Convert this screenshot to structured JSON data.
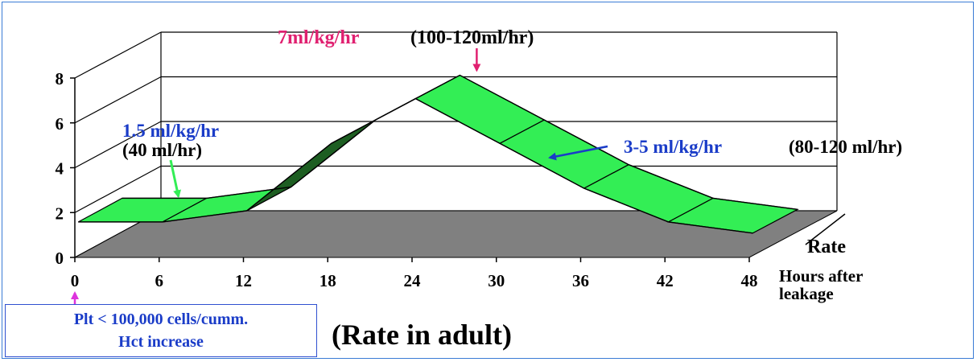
{
  "chart_data": {
    "type": "area",
    "view": "3d",
    "x": [
      0,
      6,
      12,
      18,
      24,
      30,
      36,
      42,
      48
    ],
    "y_ticks": [
      0,
      2,
      4,
      6,
      8
    ],
    "ylim": [
      0,
      8
    ],
    "xlim": [
      0,
      48
    ],
    "series": [
      {
        "name": "Rate",
        "points": [
          {
            "x": 0,
            "y": 1.5
          },
          {
            "x": 6,
            "y": 1.5
          },
          {
            "x": 12,
            "y": 2
          },
          {
            "x": 18,
            "y": 5
          },
          {
            "x": 24,
            "y": 7
          },
          {
            "x": 30,
            "y": 5
          },
          {
            "x": 36,
            "y": 3
          },
          {
            "x": 42,
            "y": 1.5
          },
          {
            "x": 48,
            "y": 1
          }
        ]
      }
    ],
    "x_axis_label": "Hours after leakage",
    "depth_axis_label": "Rate",
    "caption": "(Rate in adult)",
    "colors": {
      "ribbon": "#33ee55",
      "ribbon_dark": "#1d5e22",
      "floor": "#808080",
      "pink": "#e02070",
      "blue": "#1a3cc8"
    },
    "annotations": {
      "peak": {
        "rate": "7ml/kg/hr",
        "volume": "(100-120ml/hr)"
      },
      "initial": {
        "rate": "1.5 ml/kg/hr",
        "volume": "(40 ml/hr)"
      },
      "descending": {
        "rate": "3-5 ml/kg/hr",
        "volume": "(80-120 ml/hr)"
      }
    },
    "footer_box": {
      "line1": "Plt < 100,000 cells/cumm.",
      "line2": "Hct increase"
    }
  }
}
